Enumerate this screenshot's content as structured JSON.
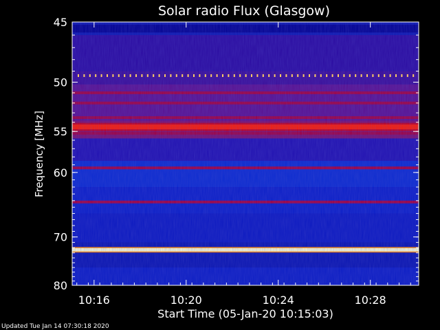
{
  "chart_data": {
    "type": "heatmap",
    "title": "Solar radio Flux (Glasgow)",
    "xlabel": "Start Time (05-Jan-20 10:15:03)",
    "ylabel": "Frequency [MHz]",
    "x_ticks": [
      {
        "label": "10:16",
        "minutes": 16
      },
      {
        "label": "10:20",
        "minutes": 20
      },
      {
        "label": "10:24",
        "minutes": 24
      },
      {
        "label": "10:28",
        "minutes": 28
      }
    ],
    "x_range_minutes": [
      15.05,
      30.1
    ],
    "y_ticks": [
      45,
      50,
      55,
      60,
      70,
      80
    ],
    "y_range": [
      45,
      80
    ],
    "y_scale": "reciprocal",
    "bands": [
      {
        "freq": 49.4,
        "level": "dotted-bright"
      },
      {
        "freq": 51.0,
        "level": "medium"
      },
      {
        "freq": 52.0,
        "level": "medium"
      },
      {
        "freq": 53.5,
        "level": "medium"
      },
      {
        "freq": 54.5,
        "level": "high"
      },
      {
        "freq": 55.2,
        "level": "medium"
      },
      {
        "freq": 59.4,
        "level": "medium"
      },
      {
        "freq": 64.2,
        "level": "medium"
      },
      {
        "freq": 72.4,
        "level": "very-high"
      }
    ],
    "colormap": [
      "#000080",
      "#0000ff",
      "#800080",
      "#ff0000",
      "#ffff00",
      "#ffffff"
    ],
    "footer": "Updated Tue Jan 14 07:30:18 2020"
  }
}
